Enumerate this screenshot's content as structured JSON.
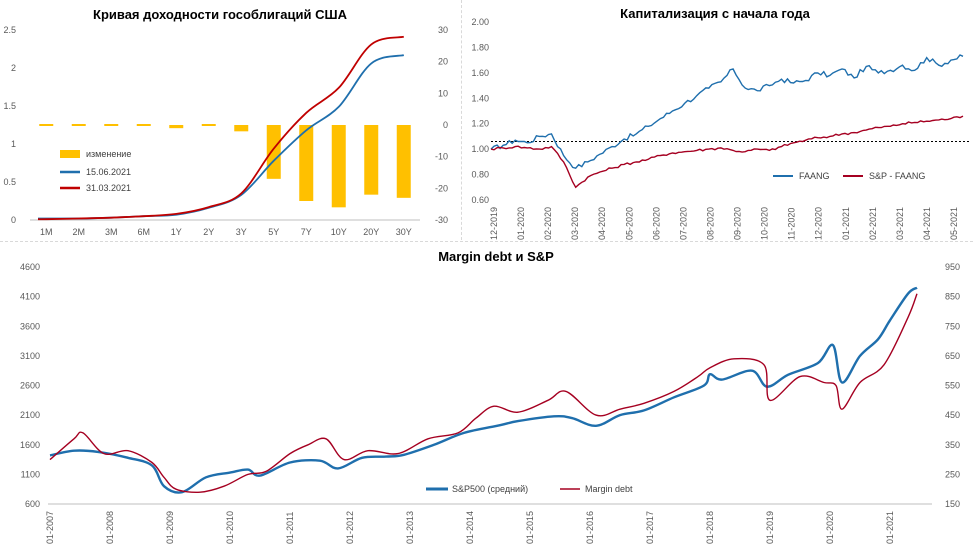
{
  "chart_data": [
    {
      "type": "line",
      "title": "Кривая доходности гособлигаций США",
      "categories": [
        "1M",
        "2M",
        "3M",
        "6M",
        "1Y",
        "2Y",
        "3Y",
        "5Y",
        "7Y",
        "10Y",
        "20Y",
        "30Y"
      ],
      "ylim": [
        0,
        2.5
      ],
      "y_ticks": [
        "0",
        "0.5",
        "1",
        "1.5",
        "2",
        "2.5"
      ],
      "y2lim": [
        -30,
        30
      ],
      "y2_ticks": [
        "30",
        "20",
        "10",
        "0",
        "-10",
        "-20",
        "-30"
      ],
      "series": [
        {
          "name": "изменение",
          "type": "bar",
          "axis": "y2",
          "color": "#ffc000",
          "values": [
            0,
            0.3,
            -0.2,
            0.2,
            -1,
            -0.3,
            -2,
            -17,
            -24,
            -26,
            -22,
            -23
          ]
        },
        {
          "name": "15.06.2021",
          "type": "line",
          "axis": "y",
          "color": "#1f6fad",
          "values": [
            0.02,
            0.02,
            0.03,
            0.05,
            0.07,
            0.16,
            0.33,
            0.78,
            1.18,
            1.49,
            2.06,
            2.17
          ]
        },
        {
          "name": "31.03.2021",
          "type": "line",
          "axis": "y",
          "color": "#c00000",
          "values": [
            0.01,
            0.02,
            0.03,
            0.05,
            0.08,
            0.17,
            0.35,
            0.94,
            1.41,
            1.74,
            2.31,
            2.41
          ]
        }
      ]
    },
    {
      "type": "line",
      "title": "Капитализация с начала года",
      "x_ticks": [
        "12-2019",
        "01-2020",
        "02-2020",
        "03-2020",
        "04-2020",
        "05-2020",
        "06-2020",
        "07-2020",
        "08-2020",
        "09-2020",
        "10-2020",
        "11-2020",
        "12-2020",
        "01-2021",
        "02-2021",
        "03-2021",
        "04-2021",
        "05-2021"
      ],
      "ylim": [
        0.6,
        2.0
      ],
      "y_ticks": [
        "2.00",
        "1.80",
        "1.60",
        "1.40",
        "1.20",
        "1.00",
        "0.80",
        "0.60"
      ],
      "reference_line": 1.06,
      "series": [
        {
          "name": "FAANG",
          "color": "#1f6fad",
          "values": [
            1.0,
            1.03,
            1.07,
            1.05,
            1.1,
            1.12,
            0.95,
            0.85,
            0.9,
            0.96,
            1.02,
            1.08,
            1.12,
            1.18,
            1.24,
            1.3,
            1.36,
            1.42,
            1.48,
            1.53,
            1.63,
            1.48,
            1.46,
            1.5,
            1.55,
            1.52,
            1.54,
            1.6,
            1.58,
            1.63,
            1.56,
            1.65,
            1.6,
            1.62,
            1.66,
            1.62,
            1.72,
            1.66,
            1.7,
            1.73
          ]
        },
        {
          "name": "S&P - FAANG",
          "color": "#a50021",
          "values": [
            1.0,
            1.01,
            1.02,
            1.01,
            1.0,
            1.02,
            0.9,
            0.7,
            0.78,
            0.82,
            0.85,
            0.88,
            0.9,
            0.92,
            0.95,
            0.97,
            0.98,
            0.99,
            1.0,
            1.01,
            0.99,
            0.98,
            1.0,
            0.99,
            1.02,
            1.05,
            1.07,
            1.09,
            1.1,
            1.12,
            1.13,
            1.15,
            1.17,
            1.18,
            1.2,
            1.21,
            1.22,
            1.23,
            1.24,
            1.26
          ]
        }
      ]
    },
    {
      "type": "line",
      "title": "Margin debt и S&P",
      "x_ticks": [
        "01-2007",
        "01-2008",
        "01-2009",
        "01-2010",
        "01-2011",
        "01-2012",
        "01-2013",
        "01-2014",
        "01-2015",
        "01-2016",
        "01-2017",
        "01-2018",
        "01-2019",
        "01-2020",
        "01-2021"
      ],
      "ylim": [
        600,
        4600
      ],
      "y_ticks": [
        "4600",
        "4100",
        "3600",
        "3100",
        "2600",
        "2100",
        "1600",
        "1100",
        "600"
      ],
      "y2lim": [
        150,
        950
      ],
      "y2_ticks": [
        "950",
        "850",
        "750",
        "650",
        "550",
        "450",
        "350",
        "250",
        "150"
      ],
      "series": [
        {
          "name": "S&P500 (средний)",
          "axis": "y",
          "color": "#1f6fad",
          "x": [
            2007.0,
            2007.4,
            2007.8,
            2008.3,
            2008.7,
            2008.9,
            2009.2,
            2009.6,
            2010.0,
            2010.3,
            2010.5,
            2011.0,
            2011.5,
            2011.8,
            2012.2,
            2012.6,
            2012.9,
            2013.4,
            2013.9,
            2014.5,
            2014.8,
            2015.4,
            2015.7,
            2016.1,
            2016.5,
            2016.9,
            2017.4,
            2017.9,
            2018.0,
            2018.2,
            2018.7,
            2018.95,
            2019.3,
            2019.8,
            2020.05,
            2020.2,
            2020.5,
            2020.8,
            2021.0,
            2021.3,
            2021.45
          ],
          "values": [
            1420,
            1500,
            1480,
            1380,
            1250,
            900,
            800,
            1050,
            1130,
            1180,
            1080,
            1300,
            1330,
            1200,
            1380,
            1400,
            1430,
            1600,
            1800,
            1930,
            2000,
            2080,
            2050,
            1920,
            2100,
            2180,
            2400,
            2600,
            2790,
            2700,
            2850,
            2580,
            2780,
            2980,
            3280,
            2650,
            3100,
            3380,
            3700,
            4150,
            4250
          ]
        },
        {
          "name": "Margin debt",
          "axis": "y2",
          "color": "#a50021",
          "x": [
            2007.0,
            2007.4,
            2007.55,
            2007.9,
            2008.3,
            2008.7,
            2008.9,
            2009.1,
            2009.5,
            2009.9,
            2010.3,
            2010.6,
            2011.0,
            2011.3,
            2011.6,
            2011.9,
            2012.3,
            2012.8,
            2013.3,
            2013.8,
            2014.1,
            2014.4,
            2014.8,
            2015.3,
            2015.6,
            2016.1,
            2016.5,
            2016.9,
            2017.4,
            2017.8,
            2018.0,
            2018.4,
            2018.9,
            2019.0,
            2019.5,
            2019.9,
            2020.1,
            2020.2,
            2020.5,
            2020.9,
            2021.3,
            2021.45
          ],
          "values": [
            300,
            370,
            390,
            320,
            330,
            290,
            240,
            200,
            190,
            210,
            250,
            260,
            320,
            350,
            370,
            300,
            330,
            320,
            370,
            390,
            440,
            480,
            460,
            500,
            530,
            450,
            470,
            490,
            530,
            580,
            610,
            640,
            620,
            500,
            580,
            560,
            550,
            470,
            560,
            620,
            780,
            860
          ]
        }
      ]
    }
  ]
}
